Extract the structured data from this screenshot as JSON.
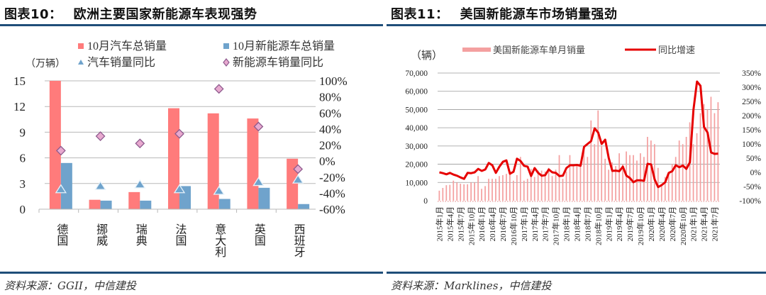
{
  "left_panel": {
    "title_num": "图表10：",
    "title_text": "欧洲主要国家新能源车表现强势",
    "source": "资料来源：GGII，中信建投",
    "unit_label": "（万辆）"
  },
  "right_panel": {
    "title_num": "图表11：",
    "title_text": "美国新能源车市场销量强劲",
    "source": "资料来源：Marklines，中信建投",
    "unit_label": "（辆）"
  },
  "colors": {
    "rule": "#1f4e79",
    "total_sales_bar": "#ff7b7b",
    "nev_sales_bar": "#6fa3cc",
    "car_yoy_marker": "#6fa3cc",
    "nev_yoy_marker_fill": "#e8a9cf",
    "nev_yoy_marker_stroke": "#8e5b8e",
    "us_bar": "#f4a0a0",
    "us_line": "#e60000",
    "grid": "#b8b8b8"
  },
  "chart_data": [
    {
      "type": "bar",
      "title": "欧洲主要国家新能源车表现强势",
      "categories": [
        "德国",
        "挪威",
        "瑞典",
        "法国",
        "意大利",
        "英国",
        "西班牙"
      ],
      "series": [
        {
          "name": "10月汽车总销量",
          "axis": "left",
          "kind": "bar",
          "values": [
            15.0,
            1.1,
            2.0,
            11.8,
            11.2,
            10.6,
            5.9
          ]
        },
        {
          "name": "10月新能源车总销量",
          "axis": "left",
          "kind": "bar",
          "values": [
            5.4,
            1.0,
            1.0,
            2.7,
            1.2,
            2.5,
            0.6
          ]
        },
        {
          "name": "汽车销量同比",
          "axis": "right",
          "kind": "marker-triangle",
          "values": [
            -35,
            -31,
            -29,
            -35,
            -37,
            -26,
            -23
          ]
        },
        {
          "name": "新能源车销量同比",
          "axis": "right",
          "kind": "marker-diamond",
          "values": [
            13,
            31,
            22,
            34,
            90,
            43,
            -10
          ]
        }
      ],
      "ylabel": "（万辆）",
      "ylim": [
        0,
        15
      ],
      "yticks": [
        "0",
        "3",
        "6",
        "9",
        "12",
        "15"
      ],
      "y2lim": [
        -60,
        100
      ],
      "y2ticks": [
        "-60%",
        "-40%",
        "-20%",
        "0%",
        "20%",
        "40%",
        "60%",
        "80%",
        "100%"
      ],
      "legend": [
        "10月汽车总销量",
        "10月新能源车总销量",
        "汽车销量同比",
        "新能源车销量同比"
      ],
      "legend_position": "top",
      "grid": true
    },
    {
      "type": "bar",
      "title": "美国新能源车市场销量强劲",
      "x_start": "2015-01",
      "x_end": "2021-08",
      "xticks": [
        "2015年1月",
        "2015年4月",
        "2015年7月",
        "2015年10月",
        "2016年1月",
        "2016年4月",
        "2016年7月",
        "2016年10月",
        "2017年1月",
        "2017年4月",
        "2017年7月",
        "2017年10月",
        "2018年1月",
        "2018年4月",
        "2018年7月",
        "2018年10月",
        "2019年1月",
        "2019年4月",
        "2019年7月",
        "2019年10月",
        "2020年1月",
        "2020年4月",
        "2020年7月",
        "2020年10月",
        "2021年1月",
        "2021年4月",
        "2021年7月"
      ],
      "series": [
        {
          "name": "美国新能源车单月销量",
          "axis": "left",
          "kind": "bar",
          "values": [
            5500,
            7000,
            8500,
            8700,
            11000,
            10000,
            9300,
            9000,
            9000,
            10000,
            10000,
            13500,
            6500,
            8000,
            12000,
            12000,
            12000,
            13500,
            14000,
            14700,
            16000,
            11000,
            14000,
            24000,
            11000,
            12000,
            17500,
            13000,
            16500,
            16500,
            16000,
            18000,
            13500,
            17000,
            25000,
            12000,
            16000,
            25000,
            20000,
            20000,
            20000,
            29000,
            24000,
            44000,
            31000,
            49500,
            30000,
            23000,
            17000,
            21000,
            19000,
            26000,
            20000,
            27000,
            25000,
            25000,
            22000,
            26000,
            24000,
            35000,
            33000,
            31000,
            18000,
            9000,
            13000,
            15000,
            20000,
            24000,
            33000,
            31000,
            35000,
            43000,
            31000,
            37000,
            48000,
            53000,
            50000,
            57000,
            48000,
            54000
          ]
        },
        {
          "name": "同比增速",
          "axis": "right",
          "kind": "line",
          "values": [
            0,
            -3,
            -7,
            -2,
            -8,
            -12,
            -18,
            -23,
            -2,
            -3,
            0,
            12,
            5,
            10,
            33,
            25,
            -2,
            20,
            37,
            42,
            -5,
            2,
            48,
            40,
            23,
            20,
            -13,
            15,
            -2,
            -12,
            -10,
            10,
            0,
            -2,
            -13,
            -12,
            15,
            25,
            25,
            26,
            23,
            90,
            100,
            110,
            155,
            140,
            100,
            115,
            50,
            5,
            6,
            4,
            20,
            -12,
            -20,
            -35,
            -28,
            -28,
            -30,
            30,
            28,
            -25,
            -52,
            -45,
            -35,
            -2,
            4,
            25,
            18,
            24,
            12,
            35,
            220,
            320,
            305,
            160,
            140,
            70,
            65,
            66
          ]
        }
      ],
      "ylabel": "（辆）",
      "ylim": [
        0,
        70000
      ],
      "yticks": [
        "0",
        "10,000",
        "20,000",
        "30,000",
        "40,000",
        "50,000",
        "60,000",
        "70,000"
      ],
      "y2lim": [
        -100,
        350
      ],
      "y2ticks": [
        "-100%",
        "-50%",
        "0%",
        "50%",
        "100%",
        "150%",
        "200%",
        "250%",
        "300%",
        "350%"
      ],
      "legend": [
        "美国新能源车单月销量",
        "同比增速"
      ],
      "legend_position": "top",
      "grid": true
    }
  ]
}
